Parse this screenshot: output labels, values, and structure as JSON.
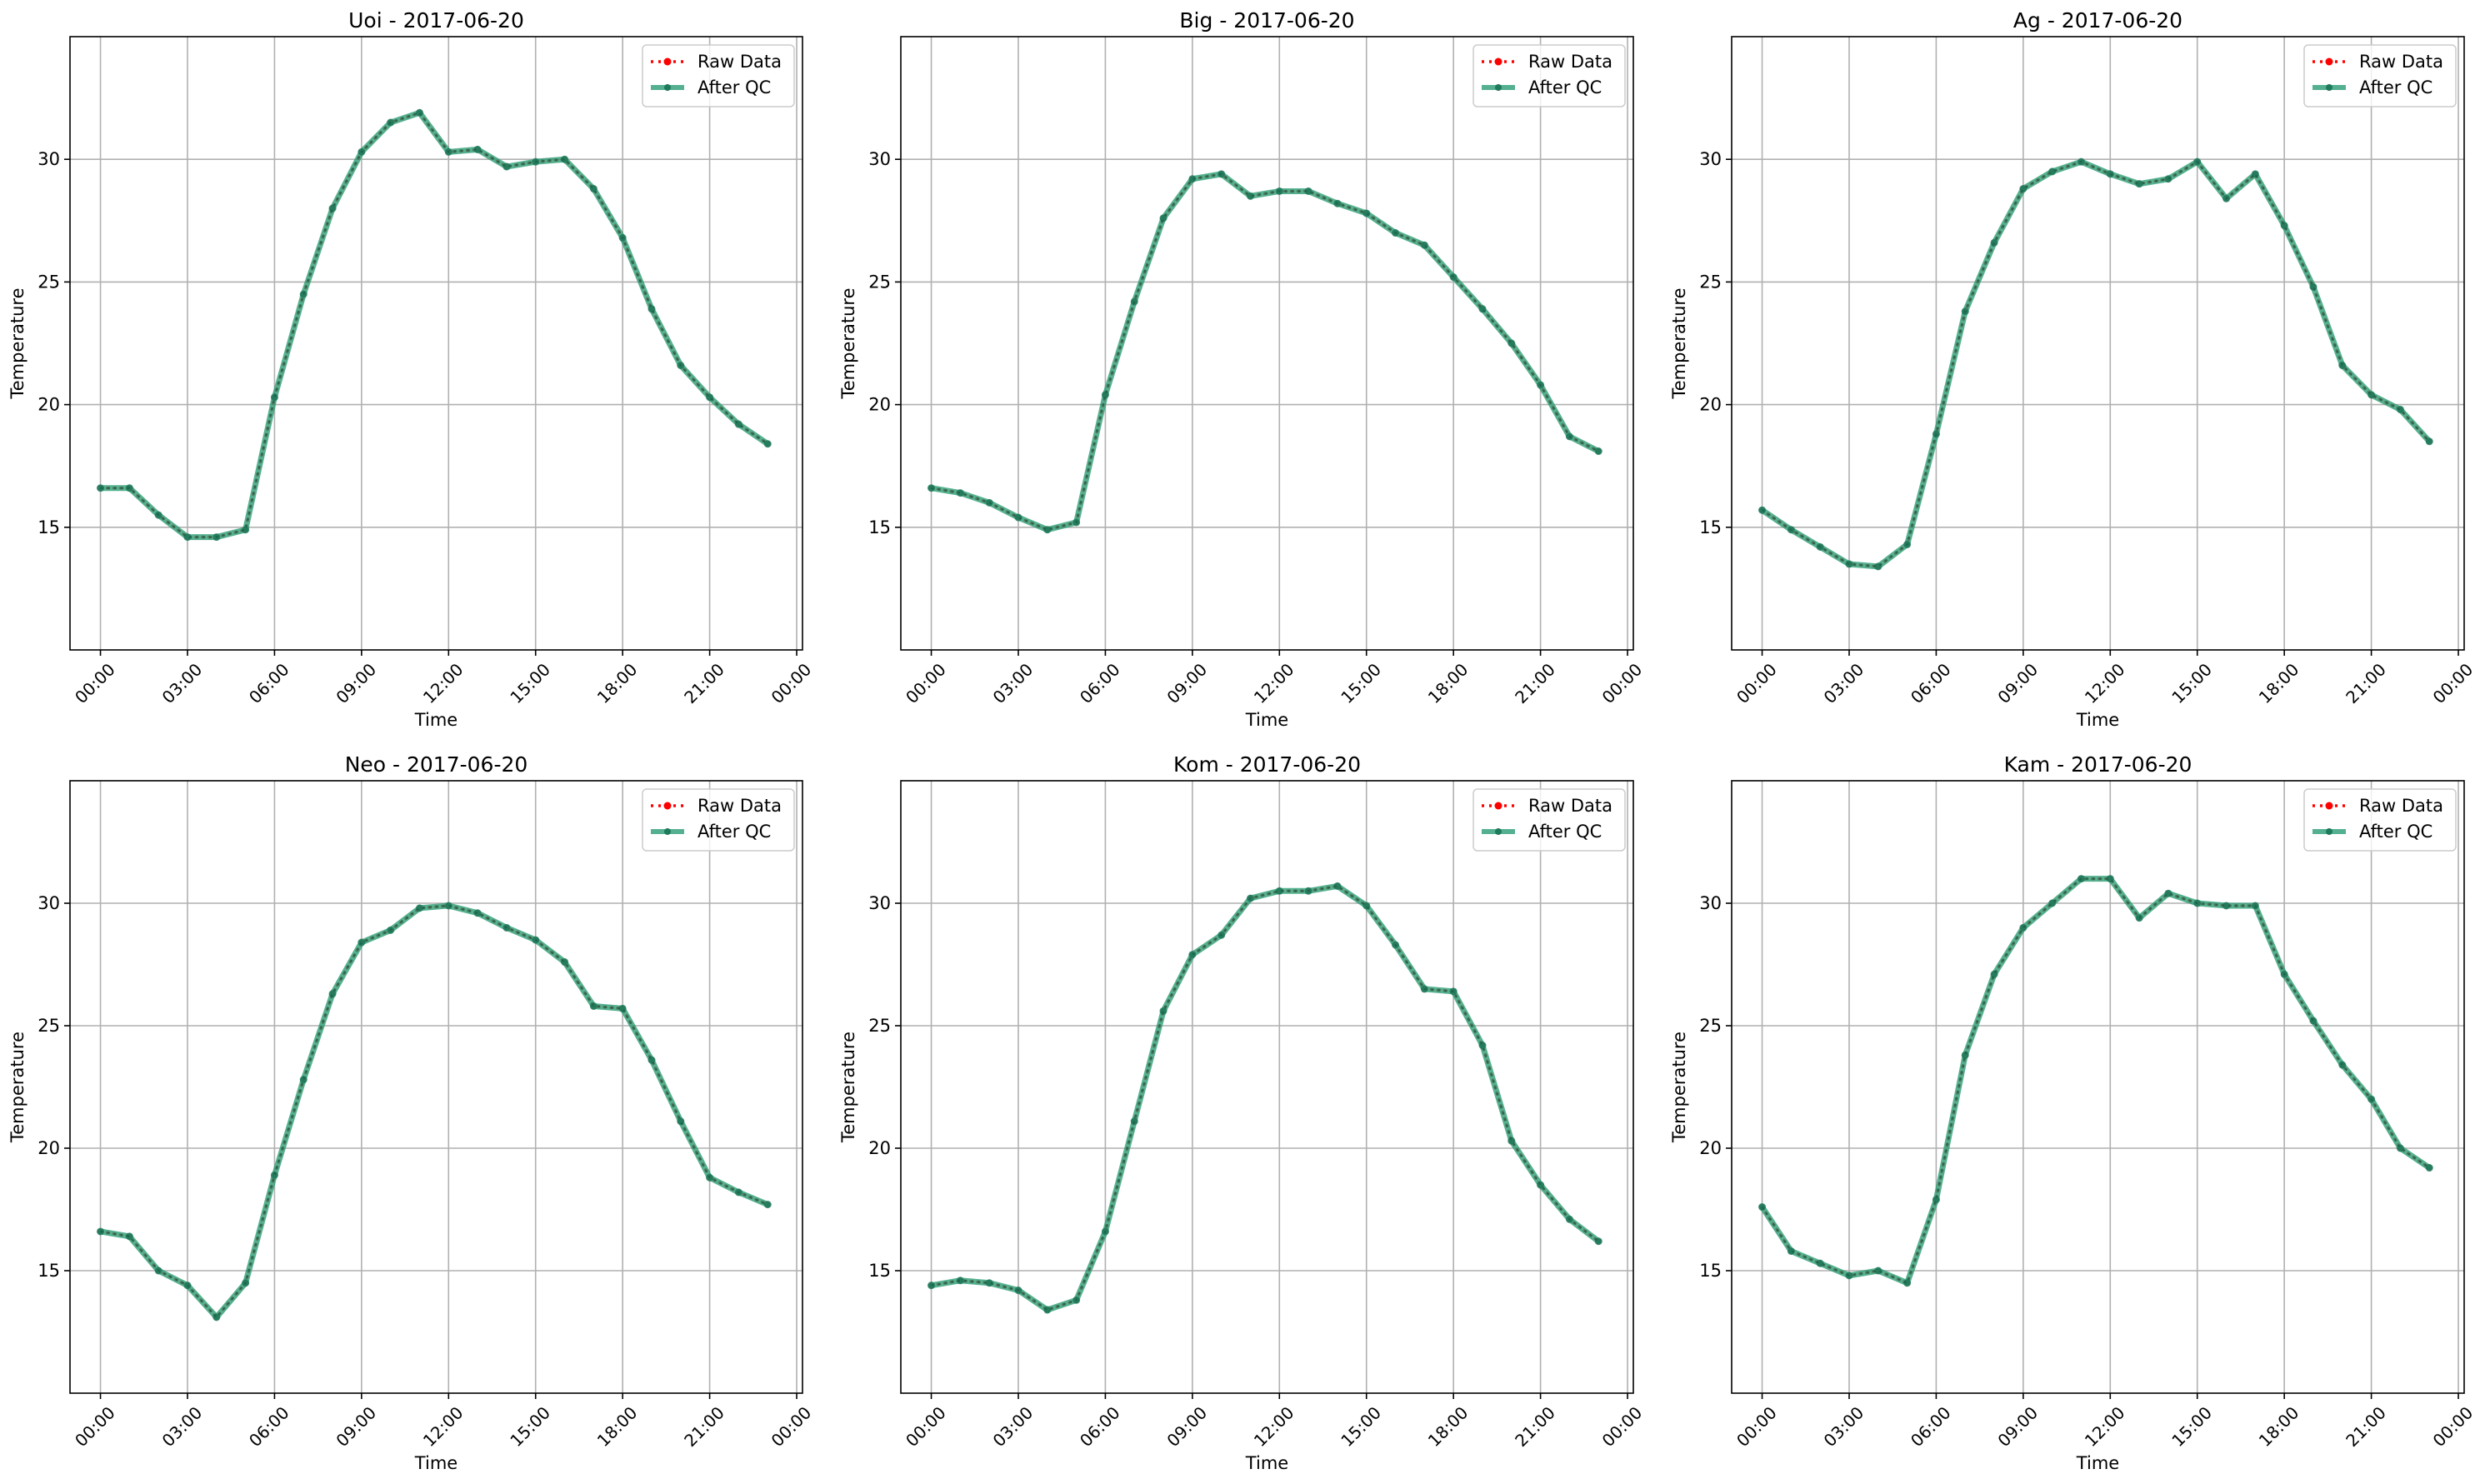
{
  "chart_data": [
    {
      "type": "line",
      "title": "Uoi - 2017-06-20",
      "xlabel": "Time",
      "ylabel": "Temperature",
      "x_hours": [
        0,
        1,
        2,
        3,
        4,
        5,
        6,
        7,
        8,
        9,
        10,
        11,
        12,
        13,
        14,
        15,
        16,
        17,
        18,
        19,
        20,
        21,
        22,
        23
      ],
      "xticks": [
        "00:00",
        "03:00",
        "06:00",
        "09:00",
        "12:00",
        "15:00",
        "18:00",
        "21:00",
        "00:00"
      ],
      "yticks": [
        15,
        20,
        25,
        30
      ],
      "ylim": [
        10,
        35
      ],
      "grid": true,
      "legend_position": "upper right",
      "series": [
        {
          "name": "Raw Data",
          "color": "#ff0000",
          "style": "dotted",
          "values": [
            16.6,
            16.6,
            15.5,
            14.6,
            14.6,
            14.9,
            20.3,
            24.5,
            28.0,
            30.3,
            31.5,
            31.9,
            30.3,
            30.4,
            29.7,
            29.9,
            30.0,
            28.8,
            26.8,
            23.9,
            21.6,
            20.3,
            19.2,
            18.4
          ]
        },
        {
          "name": "After QC",
          "color": "#2a9d76",
          "style": "solid",
          "values": [
            16.6,
            16.6,
            15.5,
            14.6,
            14.6,
            14.9,
            20.3,
            24.5,
            28.0,
            30.3,
            31.5,
            31.9,
            30.3,
            30.4,
            29.7,
            29.9,
            30.0,
            28.8,
            26.8,
            23.9,
            21.6,
            20.3,
            19.2,
            18.4
          ]
        }
      ]
    },
    {
      "type": "line",
      "title": "Big - 2017-06-20",
      "xlabel": "Time",
      "ylabel": "Temperature",
      "x_hours": [
        0,
        1,
        2,
        3,
        4,
        5,
        6,
        7,
        8,
        9,
        10,
        11,
        12,
        13,
        14,
        15,
        16,
        17,
        18,
        19,
        20,
        21,
        22,
        23
      ],
      "xticks": [
        "00:00",
        "03:00",
        "06:00",
        "09:00",
        "12:00",
        "15:00",
        "18:00",
        "21:00",
        "00:00"
      ],
      "yticks": [
        15,
        20,
        25,
        30
      ],
      "ylim": [
        10,
        35
      ],
      "grid": true,
      "legend_position": "upper right",
      "series": [
        {
          "name": "Raw Data",
          "color": "#ff0000",
          "style": "dotted",
          "values": [
            16.6,
            16.4,
            16.0,
            15.4,
            14.9,
            15.2,
            20.4,
            24.2,
            27.6,
            29.2,
            29.4,
            28.5,
            28.7,
            28.7,
            28.2,
            27.8,
            27.0,
            26.5,
            25.2,
            23.9,
            22.5,
            20.8,
            18.7,
            18.1
          ]
        },
        {
          "name": "After QC",
          "color": "#2a9d76",
          "style": "solid",
          "values": [
            16.6,
            16.4,
            16.0,
            15.4,
            14.9,
            15.2,
            20.4,
            24.2,
            27.6,
            29.2,
            29.4,
            28.5,
            28.7,
            28.7,
            28.2,
            27.8,
            27.0,
            26.5,
            25.2,
            23.9,
            22.5,
            20.8,
            18.7,
            18.1
          ]
        }
      ]
    },
    {
      "type": "line",
      "title": "Ag - 2017-06-20",
      "xlabel": "Time",
      "ylabel": "Temperature",
      "x_hours": [
        0,
        1,
        2,
        3,
        4,
        5,
        6,
        7,
        8,
        9,
        10,
        11,
        12,
        13,
        14,
        15,
        16,
        17,
        18,
        19,
        20,
        21,
        22,
        23
      ],
      "xticks": [
        "00:00",
        "03:00",
        "06:00",
        "09:00",
        "12:00",
        "15:00",
        "18:00",
        "21:00",
        "00:00"
      ],
      "yticks": [
        15,
        20,
        25,
        30
      ],
      "ylim": [
        10,
        35
      ],
      "grid": true,
      "legend_position": "upper right",
      "series": [
        {
          "name": "Raw Data",
          "color": "#ff0000",
          "style": "dotted",
          "values": [
            15.7,
            14.9,
            14.2,
            13.5,
            13.4,
            14.3,
            18.8,
            23.8,
            26.6,
            28.8,
            29.5,
            29.9,
            29.4,
            29.0,
            29.2,
            29.9,
            28.4,
            29.4,
            27.3,
            24.8,
            21.6,
            20.4,
            19.8,
            18.5
          ]
        },
        {
          "name": "After QC",
          "color": "#2a9d76",
          "style": "solid",
          "values": [
            15.7,
            14.9,
            14.2,
            13.5,
            13.4,
            14.3,
            18.8,
            23.8,
            26.6,
            28.8,
            29.5,
            29.9,
            29.4,
            29.0,
            29.2,
            29.9,
            28.4,
            29.4,
            27.3,
            24.8,
            21.6,
            20.4,
            19.8,
            18.5
          ]
        }
      ]
    },
    {
      "type": "line",
      "title": "Neo - 2017-06-20",
      "xlabel": "Time",
      "ylabel": "Temperature",
      "x_hours": [
        0,
        1,
        2,
        3,
        4,
        5,
        6,
        7,
        8,
        9,
        10,
        11,
        12,
        13,
        14,
        15,
        16,
        17,
        18,
        19,
        20,
        21,
        22,
        23
      ],
      "xticks": [
        "00:00",
        "03:00",
        "06:00",
        "09:00",
        "12:00",
        "15:00",
        "18:00",
        "21:00",
        "00:00"
      ],
      "yticks": [
        15,
        20,
        25,
        30
      ],
      "ylim": [
        10,
        35
      ],
      "grid": true,
      "legend_position": "upper right",
      "series": [
        {
          "name": "Raw Data",
          "color": "#ff0000",
          "style": "dotted",
          "values": [
            16.6,
            16.4,
            15.0,
            14.4,
            13.1,
            14.5,
            18.9,
            22.8,
            26.3,
            28.4,
            28.9,
            29.8,
            29.9,
            29.6,
            29.0,
            28.5,
            27.6,
            25.8,
            25.7,
            23.6,
            21.1,
            18.8,
            18.2,
            17.7
          ]
        },
        {
          "name": "After QC",
          "color": "#2a9d76",
          "style": "solid",
          "values": [
            16.6,
            16.4,
            15.0,
            14.4,
            13.1,
            14.5,
            18.9,
            22.8,
            26.3,
            28.4,
            28.9,
            29.8,
            29.9,
            29.6,
            29.0,
            28.5,
            27.6,
            25.8,
            25.7,
            23.6,
            21.1,
            18.8,
            18.2,
            17.7
          ]
        }
      ]
    },
    {
      "type": "line",
      "title": "Kom - 2017-06-20",
      "xlabel": "Time",
      "ylabel": "Temperature",
      "x_hours": [
        0,
        1,
        2,
        3,
        4,
        5,
        6,
        7,
        8,
        9,
        10,
        11,
        12,
        13,
        14,
        15,
        16,
        17,
        18,
        19,
        20,
        21,
        22,
        23
      ],
      "xticks": [
        "00:00",
        "03:00",
        "06:00",
        "09:00",
        "12:00",
        "15:00",
        "18:00",
        "21:00",
        "00:00"
      ],
      "yticks": [
        15,
        20,
        25,
        30
      ],
      "ylim": [
        10,
        35
      ],
      "grid": true,
      "legend_position": "upper right",
      "series": [
        {
          "name": "Raw Data",
          "color": "#ff0000",
          "style": "dotted",
          "values": [
            14.4,
            14.6,
            14.5,
            14.2,
            13.4,
            13.8,
            16.6,
            21.1,
            25.6,
            27.9,
            28.7,
            30.2,
            30.5,
            30.5,
            30.7,
            29.9,
            28.3,
            26.5,
            26.4,
            24.2,
            20.3,
            18.5,
            17.1,
            16.2
          ]
        },
        {
          "name": "After QC",
          "color": "#2a9d76",
          "style": "solid",
          "values": [
            14.4,
            14.6,
            14.5,
            14.2,
            13.4,
            13.8,
            16.6,
            21.1,
            25.6,
            27.9,
            28.7,
            30.2,
            30.5,
            30.5,
            30.7,
            29.9,
            28.3,
            26.5,
            26.4,
            24.2,
            20.3,
            18.5,
            17.1,
            16.2
          ]
        }
      ]
    },
    {
      "type": "line",
      "title": "Kam - 2017-06-20",
      "xlabel": "Time",
      "ylabel": "Temperature",
      "x_hours": [
        0,
        1,
        2,
        3,
        4,
        5,
        6,
        7,
        8,
        9,
        10,
        11,
        12,
        13,
        14,
        15,
        16,
        17,
        18,
        19,
        20,
        21,
        22,
        23
      ],
      "xticks": [
        "00:00",
        "03:00",
        "06:00",
        "09:00",
        "12:00",
        "15:00",
        "18:00",
        "21:00",
        "00:00"
      ],
      "yticks": [
        15,
        20,
        25,
        30
      ],
      "ylim": [
        10,
        35
      ],
      "grid": true,
      "legend_position": "upper right",
      "series": [
        {
          "name": "Raw Data",
          "color": "#ff0000",
          "style": "dotted",
          "values": [
            17.6,
            15.8,
            15.3,
            14.8,
            15.0,
            14.5,
            17.9,
            23.8,
            27.1,
            29.0,
            30.0,
            31.0,
            31.0,
            29.4,
            30.4,
            30.0,
            29.9,
            29.9,
            27.1,
            25.2,
            23.4,
            22.0,
            20.0,
            19.2
          ]
        },
        {
          "name": "After QC",
          "color": "#2a9d76",
          "style": "solid",
          "values": [
            17.6,
            15.8,
            15.3,
            14.8,
            15.0,
            14.5,
            17.9,
            23.8,
            27.1,
            29.0,
            30.0,
            31.0,
            31.0,
            29.4,
            30.4,
            30.0,
            29.9,
            29.9,
            27.1,
            25.2,
            23.4,
            22.0,
            20.0,
            19.2
          ]
        }
      ]
    }
  ]
}
